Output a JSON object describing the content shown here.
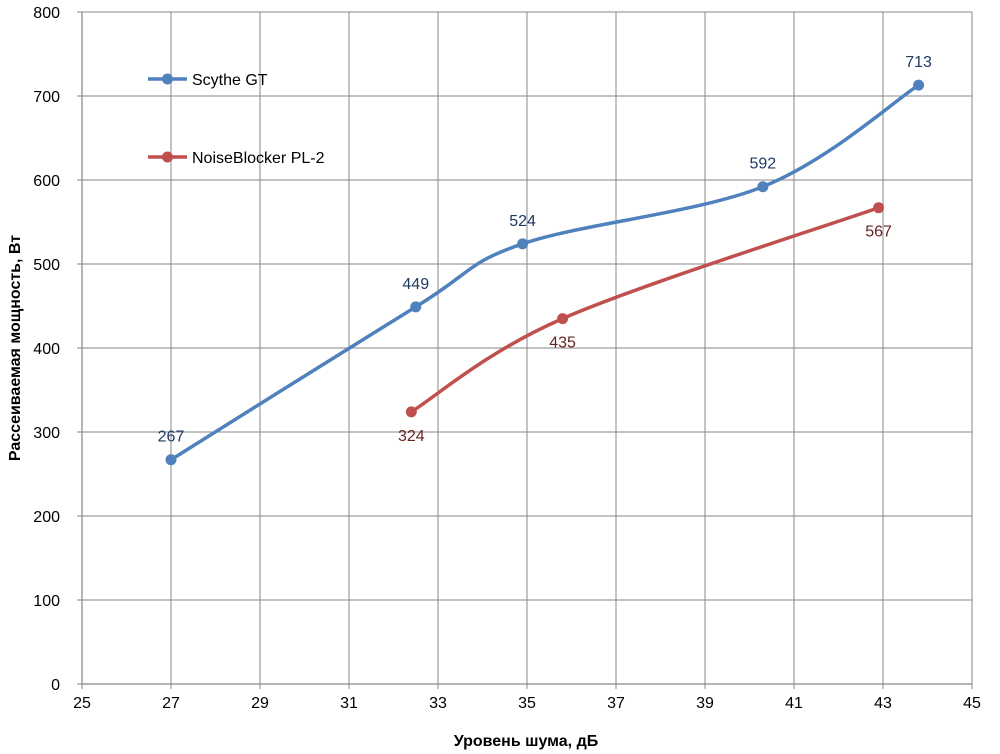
{
  "chart_data": {
    "type": "line",
    "xlabel": "Уровень шума, дБ",
    "ylabel": "Рассеиваемая мощность, Вт",
    "xlim": [
      25,
      45
    ],
    "ylim": [
      0,
      800
    ],
    "xticks": [
      25,
      27,
      29,
      31,
      33,
      35,
      37,
      39,
      41,
      43,
      45
    ],
    "yticks": [
      0,
      100,
      200,
      300,
      400,
      500,
      600,
      700,
      800
    ],
    "grid": true,
    "legend_position": "top-left",
    "series": [
      {
        "name": "Scythe GT",
        "color": "#4F81BD",
        "label_color": "#1F3A64",
        "label_position": "above",
        "points": [
          {
            "x": 27.0,
            "y": 267,
            "label": "267"
          },
          {
            "x": 32.5,
            "y": 449,
            "label": "449"
          },
          {
            "x": 34.9,
            "y": 524,
            "label": "524"
          },
          {
            "x": 40.3,
            "y": 592,
            "label": "592"
          },
          {
            "x": 43.8,
            "y": 713,
            "label": "713"
          }
        ]
      },
      {
        "name": "NoiseBlocker PL-2",
        "color": "#C0504D",
        "label_color": "#632523",
        "label_position": "below",
        "points": [
          {
            "x": 32.4,
            "y": 324,
            "label": "324"
          },
          {
            "x": 35.8,
            "y": 435,
            "label": "435"
          },
          {
            "x": 42.9,
            "y": 567,
            "label": "567"
          }
        ]
      }
    ]
  }
}
